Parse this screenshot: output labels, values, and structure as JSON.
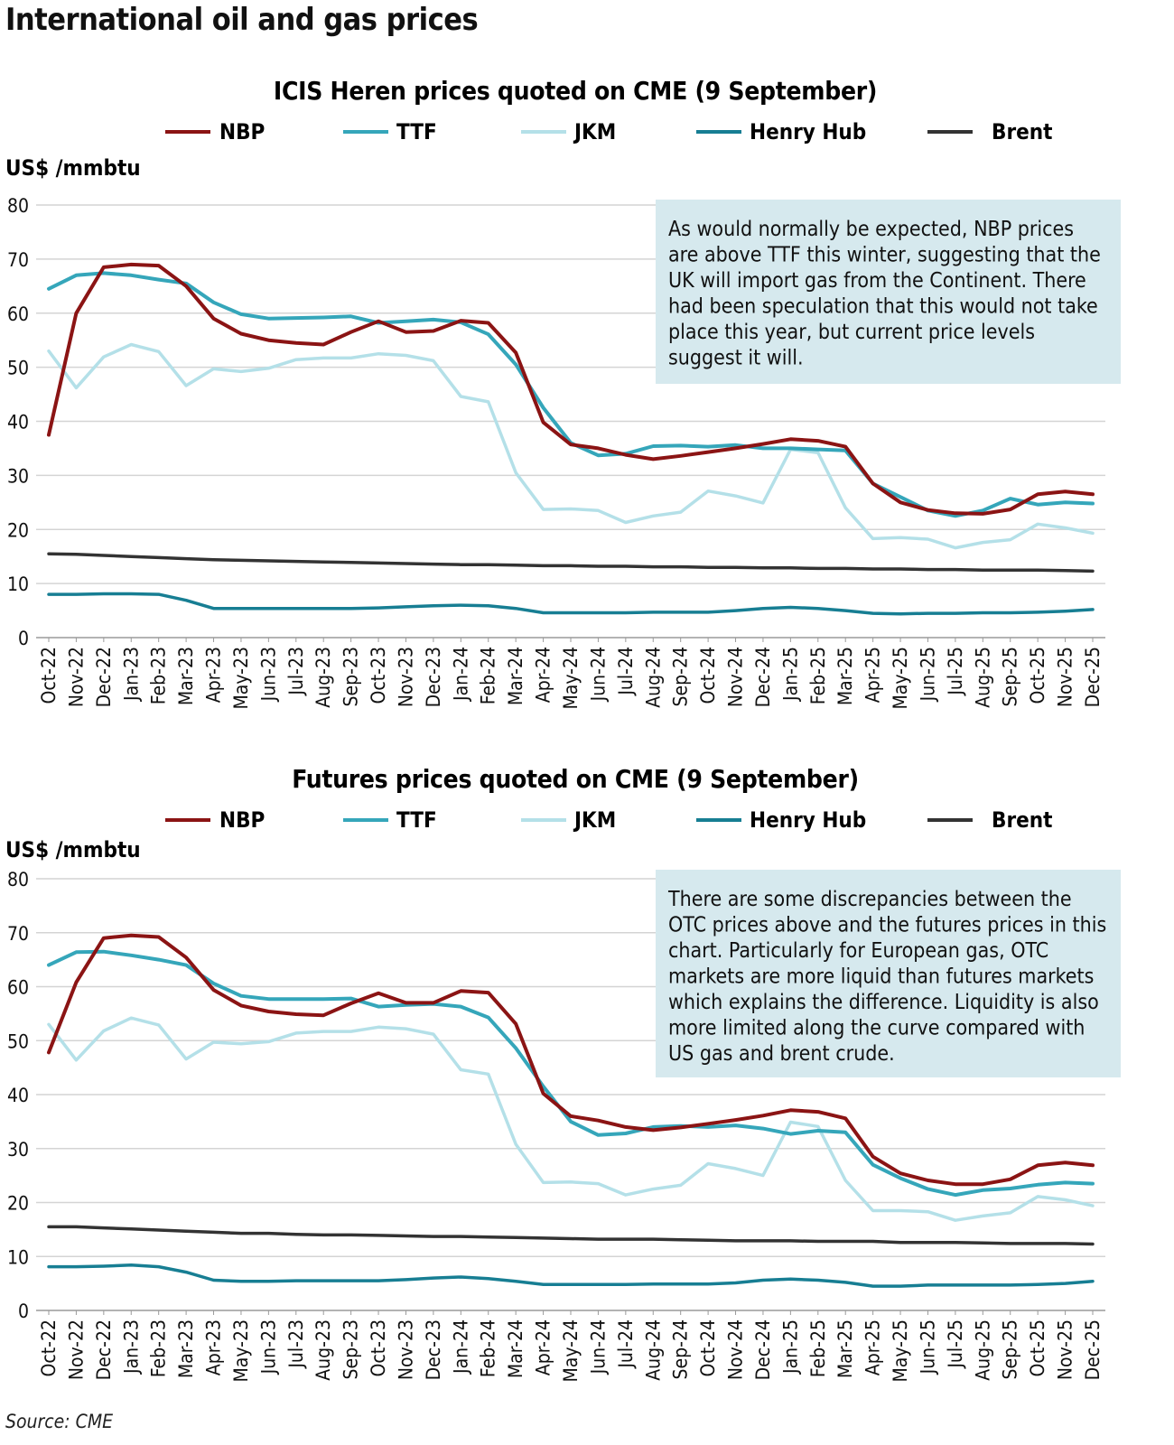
{
  "page_title": "International oil and gas prices",
  "source": "Source: CME",
  "colors": {
    "NBP": "#8b1414",
    "TTF": "#35a6ba",
    "JKM": "#b4e0e8",
    "Henry Hub": "#177e93",
    "Brent": "#333333",
    "annotation_bg": "#d6e9ee",
    "grid": "#d4d4d4"
  },
  "chart_data": [
    {
      "type": "line",
      "title": "ICIS Heren prices quoted on CME (9 September)",
      "ylabel": "US$ /mmbtu",
      "xlabel": "",
      "ylim": [
        0,
        80
      ],
      "yticks": [
        0,
        10,
        20,
        30,
        40,
        50,
        60,
        70,
        80
      ],
      "grid": true,
      "legend": "top",
      "annotation": [
        "As would normally be expected, NBP prices",
        "are above TTF this winter, suggesting that the",
        "UK will import gas from the Continent. There",
        "had been speculation that this would not take",
        "place this year, but current price levels",
        "suggest it will."
      ],
      "categories": [
        "Oct-22",
        "Nov-22",
        "Dec-22",
        "Jan-23",
        "Feb-23",
        "Mar-23",
        "Apr-23",
        "May-23",
        "Jun-23",
        "Jul-23",
        "Aug-23",
        "Sep-23",
        "Oct-23",
        "Nov-23",
        "Dec-23",
        "Jan-24",
        "Feb-24",
        "Mar-24",
        "Apr-24",
        "May-24",
        "Jun-24",
        "Jul-24",
        "Aug-24",
        "Sep-24",
        "Oct-24",
        "Nov-24",
        "Dec-24",
        "Jan-25",
        "Feb-25",
        "Mar-25",
        "Apr-25",
        "May-25",
        "Jun-25",
        "Jul-25",
        "Aug-25",
        "Sep-25",
        "Oct-25",
        "Nov-25",
        "Dec-25"
      ],
      "series": [
        {
          "name": "NBP",
          "values": [
            37.5,
            60,
            68.5,
            69,
            68.8,
            65,
            59,
            56.2,
            55,
            54.5,
            54.2,
            56.5,
            58.5,
            56.5,
            56.7,
            58.6,
            58.2,
            52.7,
            39.8,
            35.7,
            35,
            33.8,
            33,
            33.6,
            34.3,
            35,
            35.8,
            36.7,
            36.4,
            35.3,
            28.5,
            25,
            23.6,
            23,
            22.9,
            23.7,
            26.5,
            27,
            26.5
          ]
        },
        {
          "name": "TTF",
          "values": [
            64.5,
            67,
            67.4,
            67,
            66.2,
            65.5,
            62,
            59.8,
            59,
            59.1,
            59.2,
            59.4,
            58.2,
            58.5,
            58.8,
            58.3,
            56.1,
            50.5,
            42.5,
            36,
            33.7,
            34,
            35.4,
            35.5,
            35.3,
            35.6,
            35,
            35,
            34.8,
            34.6,
            28.5,
            26,
            23.5,
            22.5,
            23.5,
            25.7,
            24.6,
            25,
            24.8
          ]
        },
        {
          "name": "JKM",
          "values": [
            53,
            46.2,
            51.9,
            54.2,
            52.9,
            46.6,
            49.7,
            49.2,
            49.8,
            51.4,
            51.7,
            51.7,
            52.5,
            52.2,
            51.2,
            44.6,
            43.6,
            30.5,
            23.7,
            23.8,
            23.5,
            21.3,
            22.5,
            23.2,
            27.1,
            26.2,
            24.9,
            34.8,
            34.2,
            24,
            18.3,
            18.5,
            18.2,
            16.6,
            17.6,
            18.1,
            21,
            20.3,
            19.3
          ]
        },
        {
          "name": "Henry Hub",
          "values": [
            8,
            8,
            8.1,
            8.1,
            8,
            6.9,
            5.4,
            5.4,
            5.4,
            5.4,
            5.4,
            5.4,
            5.5,
            5.7,
            5.9,
            6,
            5.9,
            5.4,
            4.6,
            4.6,
            4.6,
            4.6,
            4.7,
            4.7,
            4.7,
            5,
            5.4,
            5.6,
            5.4,
            5,
            4.5,
            4.4,
            4.5,
            4.5,
            4.6,
            4.6,
            4.7,
            4.9,
            5.2
          ]
        },
        {
          "name": "Brent",
          "values": [
            15.5,
            15.4,
            15.2,
            15,
            14.8,
            14.6,
            14.4,
            14.3,
            14.2,
            14.1,
            14,
            13.9,
            13.8,
            13.7,
            13.6,
            13.5,
            13.5,
            13.4,
            13.3,
            13.3,
            13.2,
            13.2,
            13.1,
            13.1,
            13,
            13,
            12.9,
            12.9,
            12.8,
            12.8,
            12.7,
            12.7,
            12.6,
            12.6,
            12.5,
            12.5,
            12.5,
            12.4,
            12.3
          ]
        }
      ]
    },
    {
      "type": "line",
      "title": "Futures prices quoted on CME (9 September)",
      "ylabel": "US$ /mmbtu",
      "xlabel": "",
      "ylim": [
        0,
        80
      ],
      "yticks": [
        0,
        10,
        20,
        30,
        40,
        50,
        60,
        70,
        80
      ],
      "grid": true,
      "legend": "top",
      "annotation": [
        "There are some discrepancies between the",
        "OTC prices above and the futures prices in this",
        "chart. Particularly for European gas, OTC",
        "markets are more liquid than futures markets",
        "which explains the difference. Liquidity is also",
        "more limited along the curve compared with",
        "US gas and brent crude."
      ],
      "categories": [
        "Oct-22",
        "Nov-22",
        "Dec-22",
        "Jan-23",
        "Feb-23",
        "Mar-23",
        "Apr-23",
        "May-23",
        "Jun-23",
        "Jul-23",
        "Aug-23",
        "Sep-23",
        "Oct-23",
        "Nov-23",
        "Dec-23",
        "Jan-24",
        "Feb-24",
        "Mar-24",
        "Apr-24",
        "May-24",
        "Jun-24",
        "Jul-24",
        "Aug-24",
        "Sep-24",
        "Oct-24",
        "Nov-24",
        "Dec-24",
        "Jan-25",
        "Feb-25",
        "Mar-25",
        "Apr-25",
        "May-25",
        "Jun-25",
        "Jul-25",
        "Aug-25",
        "Sep-25",
        "Oct-25",
        "Nov-25",
        "Dec-25"
      ],
      "series": [
        {
          "name": "NBP",
          "values": [
            47.8,
            60.8,
            69,
            69.5,
            69.2,
            65.4,
            59.4,
            56.5,
            55.4,
            54.9,
            54.7,
            56.9,
            58.8,
            57,
            57,
            59.2,
            58.9,
            53.1,
            40.2,
            36,
            35.2,
            34,
            33.4,
            33.9,
            34.6,
            35.3,
            36.1,
            37.1,
            36.8,
            35.6,
            28.5,
            25.4,
            24.1,
            23.4,
            23.4,
            24.3,
            26.9,
            27.4,
            26.9
          ]
        },
        {
          "name": "TTF",
          "values": [
            64,
            66.4,
            66.5,
            65.8,
            65,
            64,
            60.6,
            58.3,
            57.7,
            57.7,
            57.7,
            57.8,
            56.3,
            56.6,
            56.8,
            56.3,
            54.3,
            48.6,
            41.5,
            35,
            32.5,
            32.8,
            34,
            34.2,
            34,
            34.3,
            33.7,
            32.7,
            33.3,
            33,
            27,
            24.5,
            22.5,
            21.4,
            22.3,
            22.6,
            23.3,
            23.7,
            23.5
          ]
        },
        {
          "name": "JKM",
          "values": [
            53,
            46.4,
            51.8,
            54.2,
            52.9,
            46.6,
            49.7,
            49.4,
            49.8,
            51.4,
            51.7,
            51.7,
            52.5,
            52.2,
            51.2,
            44.6,
            43.8,
            30.8,
            23.7,
            23.8,
            23.5,
            21.4,
            22.5,
            23.2,
            27.2,
            26.3,
            25,
            34.9,
            34.1,
            24.1,
            18.5,
            18.5,
            18.3,
            16.7,
            17.5,
            18.1,
            21.1,
            20.5,
            19.4
          ]
        },
        {
          "name": "Henry Hub",
          "values": [
            8.1,
            8.1,
            8.2,
            8.4,
            8.1,
            7.1,
            5.6,
            5.4,
            5.4,
            5.5,
            5.5,
            5.5,
            5.5,
            5.7,
            6,
            6.2,
            5.9,
            5.4,
            4.8,
            4.8,
            4.8,
            4.8,
            4.9,
            4.9,
            4.9,
            5.1,
            5.6,
            5.8,
            5.6,
            5.2,
            4.5,
            4.5,
            4.7,
            4.7,
            4.7,
            4.7,
            4.8,
            5,
            5.4
          ]
        },
        {
          "name": "Brent",
          "values": [
            15.5,
            15.5,
            15.3,
            15.1,
            14.9,
            14.7,
            14.5,
            14.3,
            14.3,
            14.1,
            14,
            14,
            13.9,
            13.8,
            13.7,
            13.7,
            13.6,
            13.5,
            13.4,
            13.3,
            13.2,
            13.2,
            13.2,
            13.1,
            13,
            12.9,
            12.9,
            12.9,
            12.8,
            12.8,
            12.8,
            12.6,
            12.6,
            12.6,
            12.5,
            12.4,
            12.4,
            12.4,
            12.3
          ]
        }
      ]
    }
  ]
}
